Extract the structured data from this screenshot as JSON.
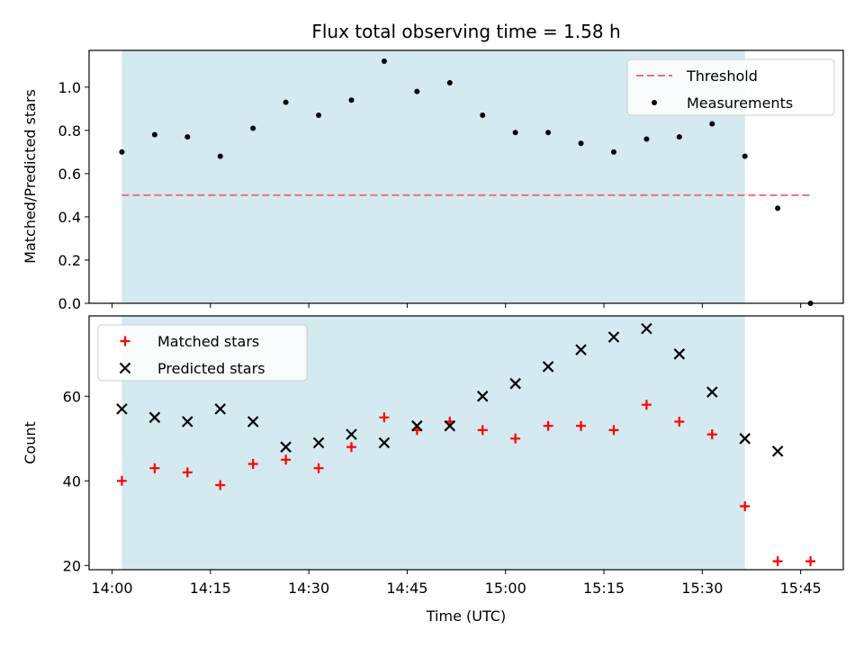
{
  "chart_data": [
    {
      "type": "scatter",
      "title": "Flux total observing time = 1.58 h",
      "xlabel": "",
      "ylabel": "Matched/Predicted stars",
      "ylim": [
        0,
        1.17
      ],
      "yticks": [
        "0.0",
        "0.2",
        "0.4",
        "0.6",
        "0.8",
        "1.0"
      ],
      "yticks_values": [
        0,
        0.2,
        0.4,
        0.6,
        0.8,
        1.0
      ],
      "xlim": [
        "13:56:30",
        "15:51:30"
      ],
      "shaded_span": [
        "14:01:30",
        "15:36:30"
      ],
      "shaded_color": "#d4eaf0",
      "legend_location": "upper right",
      "series": [
        {
          "name": "Threshold",
          "kind": "line",
          "style": "dashed",
          "color": "#f07070",
          "x": [
            "14:01:30",
            "15:46:30"
          ],
          "values": [
            0.5,
            0.5
          ]
        },
        {
          "name": "Measurements",
          "kind": "scatter",
          "marker": "dot",
          "color": "#000000",
          "x": [
            "14:01:30",
            "14:06:30",
            "14:11:30",
            "14:16:30",
            "14:21:30",
            "14:26:30",
            "14:31:30",
            "14:36:30",
            "14:41:30",
            "14:46:30",
            "14:51:30",
            "14:56:30",
            "15:01:30",
            "15:06:30",
            "15:11:30",
            "15:16:30",
            "15:21:30",
            "15:26:30",
            "15:31:30",
            "15:36:30",
            "15:41:30",
            "15:46:30"
          ],
          "values": [
            0.7,
            0.78,
            0.77,
            0.68,
            0.81,
            0.93,
            0.87,
            0.94,
            1.12,
            0.98,
            1.02,
            0.87,
            0.79,
            0.79,
            0.74,
            0.7,
            0.76,
            0.77,
            0.83,
            0.68,
            0.44,
            0.0
          ]
        }
      ]
    },
    {
      "type": "scatter",
      "title": "",
      "xlabel": "Time (UTC)",
      "ylabel": "Count",
      "ylim": [
        19,
        79
      ],
      "yticks": [
        "20",
        "40",
        "60"
      ],
      "yticks_values": [
        20,
        40,
        60
      ],
      "xlim": [
        "13:56:30",
        "15:51:30"
      ],
      "xticks": [
        "14:00",
        "14:15",
        "14:30",
        "14:45",
        "15:00",
        "15:15",
        "15:30",
        "15:45"
      ],
      "shaded_span": [
        "14:01:30",
        "15:36:30"
      ],
      "shaded_color": "#d4eaf0",
      "legend_location": "upper left",
      "series": [
        {
          "name": "Matched stars",
          "kind": "scatter",
          "marker": "plus",
          "color": "#ff0000",
          "x": [
            "14:01:30",
            "14:06:30",
            "14:11:30",
            "14:16:30",
            "14:21:30",
            "14:26:30",
            "14:31:30",
            "14:36:30",
            "14:41:30",
            "14:46:30",
            "14:51:30",
            "14:56:30",
            "15:01:30",
            "15:06:30",
            "15:11:30",
            "15:16:30",
            "15:21:30",
            "15:26:30",
            "15:31:30",
            "15:36:30",
            "15:41:30",
            "15:46:30"
          ],
          "values": [
            40,
            43,
            42,
            39,
            44,
            45,
            43,
            48,
            55,
            52,
            54,
            52,
            50,
            53,
            53,
            52,
            58,
            54,
            51,
            34,
            21,
            21
          ]
        },
        {
          "name": "Predicted stars",
          "kind": "scatter",
          "marker": "x",
          "color": "#000000",
          "x": [
            "14:01:30",
            "14:06:30",
            "14:11:30",
            "14:16:30",
            "14:21:30",
            "14:26:30",
            "14:31:30",
            "14:36:30",
            "14:41:30",
            "14:46:30",
            "14:51:30",
            "14:56:30",
            "15:01:30",
            "15:06:30",
            "15:11:30",
            "15:16:30",
            "15:21:30",
            "15:26:30",
            "15:31:30",
            "15:36:30",
            "15:41:30"
          ],
          "values": [
            57,
            55,
            54,
            57,
            54,
            48,
            49,
            51,
            49,
            53,
            53,
            60,
            63,
            67,
            71,
            74,
            76,
            70,
            61,
            50,
            47
          ]
        }
      ]
    }
  ]
}
